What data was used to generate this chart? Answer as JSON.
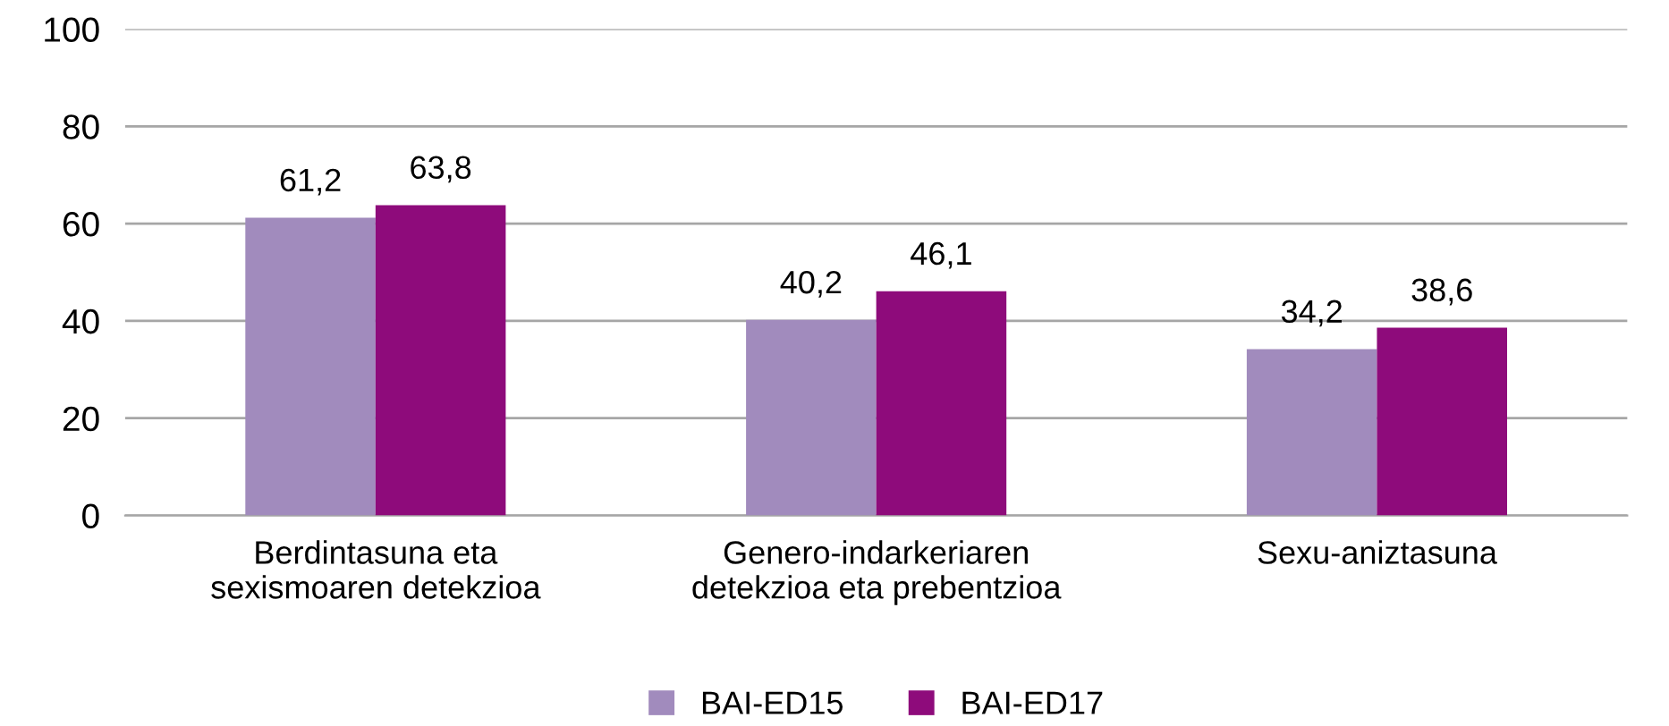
{
  "chart_data": {
    "type": "bar",
    "categories": [
      "Berdintasuna eta\nsexismoaren detekzioa",
      "Genero-indarkeriaren\ndetekzioa eta prebentzioa",
      "Sexu-aniztasuna"
    ],
    "series": [
      {
        "name": "BAI-ED15",
        "color": "#a18bbd",
        "values": [
          61.2,
          40.2,
          34.2
        ],
        "value_labels": [
          "61,2",
          "40,2",
          "34,2"
        ]
      },
      {
        "name": "BAI-ED17",
        "color": "#8e0b7b",
        "values": [
          63.8,
          46.1,
          38.6
        ],
        "value_labels": [
          "63,8",
          "46,1",
          "38,6"
        ]
      }
    ],
    "ylim": [
      0,
      100
    ],
    "yticks": [
      0,
      20,
      40,
      60,
      80,
      100
    ],
    "grid": "y",
    "legend": "bottom"
  }
}
